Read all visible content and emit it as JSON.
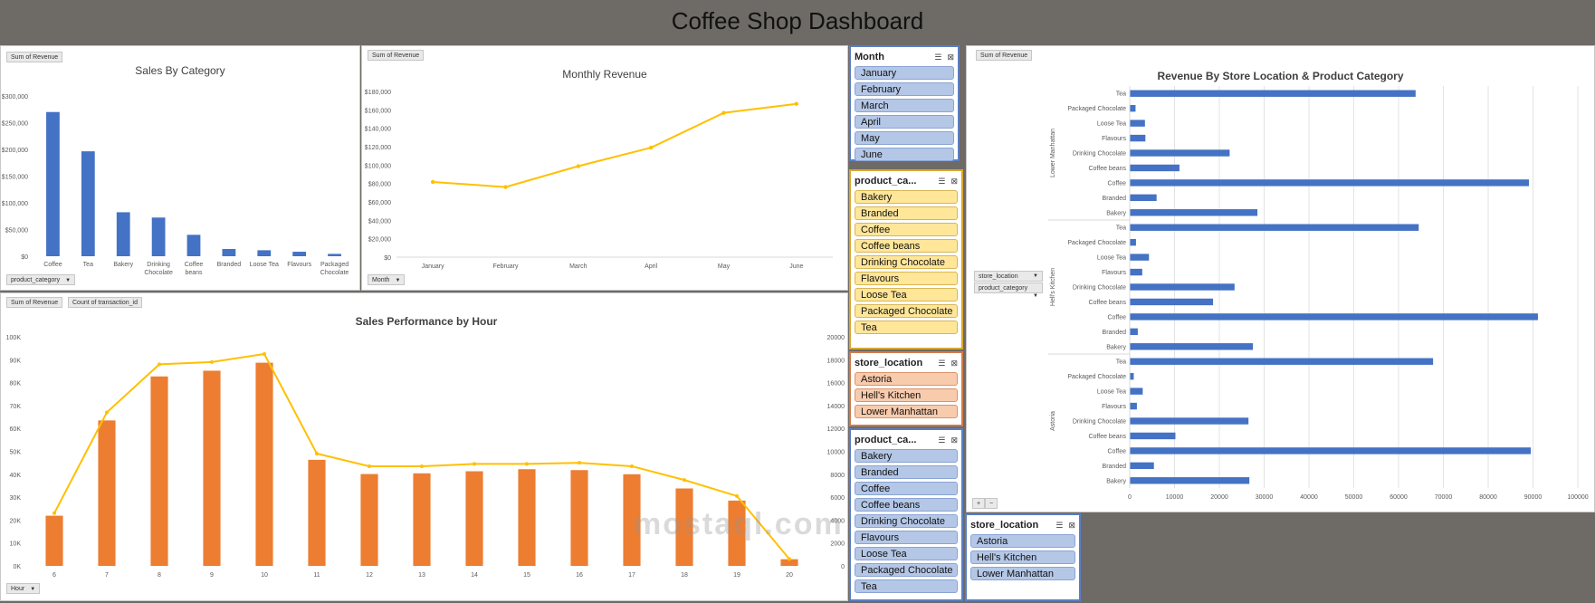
{
  "title": "Coffee Shop Dashboard",
  "colors": {
    "bar_blue": "#4472c4",
    "bar_orange": "#ed7d31",
    "line_yellow": "#ffc000"
  },
  "sales_by_category": {
    "field_button": "Sum of Revenue",
    "axis_button": "product_category",
    "chart_data": {
      "type": "bar",
      "title": "Sales By Category",
      "categories": [
        "Coffee",
        "Tea",
        "Bakery",
        "Drinking Chocolate",
        "Coffee beans",
        "Branded",
        "Loose Tea",
        "Flavours",
        "Packaged Chocolate"
      ],
      "category_labels": [
        [
          "Coffee"
        ],
        [
          "Tea"
        ],
        [
          "Bakery"
        ],
        [
          "Drinking",
          "Chocolate"
        ],
        [
          "Coffee",
          "beans"
        ],
        [
          "Branded"
        ],
        [
          "Loose Tea"
        ],
        [
          "Flavours"
        ],
        [
          "Packaged",
          "Chocolate"
        ]
      ],
      "values": [
        269952,
        196406,
        82316,
        72416,
        40085,
        13607,
        11213,
        8409,
        4408
      ],
      "ylim": [
        0,
        300000
      ],
      "yticks": [
        "$0",
        "$50,000",
        "$100,000",
        "$150,000",
        "$200,000",
        "$250,000",
        "$300,000"
      ]
    }
  },
  "monthly_revenue": {
    "field_button": "Sum of Revenue",
    "axis_button": "Month",
    "chart_data": {
      "type": "line",
      "title": "Monthly Revenue",
      "categories": [
        "January",
        "February",
        "March",
        "April",
        "May",
        "June"
      ],
      "values": [
        81678,
        76145,
        98835,
        118941,
        156728,
        166486
      ],
      "ylim": [
        0,
        180000
      ],
      "yticks": [
        "$0",
        "$20,000",
        "$40,000",
        "$60,000",
        "$80,000",
        "$100,000",
        "$120,000",
        "$140,000",
        "$160,000",
        "$180,000"
      ]
    }
  },
  "sales_by_hour": {
    "field_buttons": [
      "Sum of Revenue",
      "Count of transaction_id"
    ],
    "axis_button": "Hour",
    "chart_data": {
      "type": "bar",
      "title": "Sales Performance by Hour",
      "categories": [
        "6",
        "7",
        "8",
        "9",
        "10",
        "11",
        "12",
        "13",
        "14",
        "15",
        "16",
        "17",
        "18",
        "19",
        "20"
      ],
      "series": [
        {
          "name": "Sum of Revenue",
          "values": [
            21900,
            63500,
            82700,
            85200,
            88700,
            46300,
            40100,
            40400,
            41300,
            42200,
            41800,
            40000,
            33800,
            28500,
            2900
          ]
        },
        {
          "name": "Count of transaction_id",
          "values": [
            4600,
            13400,
            17600,
            17800,
            18500,
            9800,
            8700,
            8700,
            8900,
            8900,
            9000,
            8700,
            7500,
            6100,
            600
          ]
        }
      ],
      "ylim_left": [
        0,
        100000
      ],
      "ylim_right": [
        0,
        20000
      ],
      "yticks_left": [
        "0K",
        "10K",
        "20K",
        "30K",
        "40K",
        "50K",
        "60K",
        "70K",
        "80K",
        "90K",
        "100K"
      ],
      "yticks_right": [
        "0",
        "2000",
        "4000",
        "6000",
        "8000",
        "10000",
        "12000",
        "14000",
        "16000",
        "18000",
        "20000"
      ]
    }
  },
  "store_category": {
    "field_button": "Sum of Revenue",
    "filter_buttons": [
      "store_location",
      "product_category"
    ],
    "zoom_buttons": [
      "+",
      "−"
    ],
    "chart_data": {
      "type": "bar",
      "orientation": "horizontal",
      "title": "Revenue By Store Location & Product Category",
      "categories": [
        "Tea",
        "Packaged Chocolate",
        "Loose Tea",
        "Flavours",
        "Drinking Chocolate",
        "Coffee beans",
        "Coffee",
        "Branded",
        "Bakery"
      ],
      "series": [
        {
          "name": "Lower Manhattan",
          "values": [
            63800,
            1300,
            3400,
            3500,
            22300,
            11100,
            89100,
            6000,
            28500
          ]
        },
        {
          "name": "Hell's Kitchen",
          "values": [
            64500,
            1400,
            4300,
            2800,
            23400,
            18600,
            91100,
            1800,
            27500
          ]
        },
        {
          "name": "Astoria",
          "values": [
            67700,
            900,
            2900,
            1600,
            26500,
            10200,
            89500,
            5400,
            26700
          ]
        }
      ],
      "xlim": [
        0,
        100000
      ],
      "xticks": [
        "0",
        "10000",
        "20000",
        "30000",
        "40000",
        "50000",
        "60000",
        "70000",
        "80000",
        "90000",
        "100000"
      ]
    }
  },
  "slicers": {
    "month": {
      "header": "Month",
      "items": [
        "January",
        "February",
        "March",
        "April",
        "May",
        "June"
      ]
    },
    "product_category_1": {
      "header": "product_ca...",
      "items": [
        "Bakery",
        "Branded",
        "Coffee",
        "Coffee beans",
        "Drinking Chocolate",
        "Flavours",
        "Loose Tea",
        "Packaged Chocolate",
        "Tea"
      ]
    },
    "store_location_1": {
      "header": "store_location",
      "items": [
        "Astoria",
        "Hell's Kitchen",
        "Lower Manhattan"
      ]
    },
    "product_category_2": {
      "header": "product_ca...",
      "items": [
        "Bakery",
        "Branded",
        "Coffee",
        "Coffee beans",
        "Drinking Chocolate",
        "Flavours",
        "Loose Tea",
        "Packaged Chocolate",
        "Tea"
      ]
    },
    "store_location_2": {
      "header": "store_location",
      "items": [
        "Astoria",
        "Hell's Kitchen",
        "Lower Manhattan"
      ]
    }
  },
  "watermark": "mostaql.com"
}
